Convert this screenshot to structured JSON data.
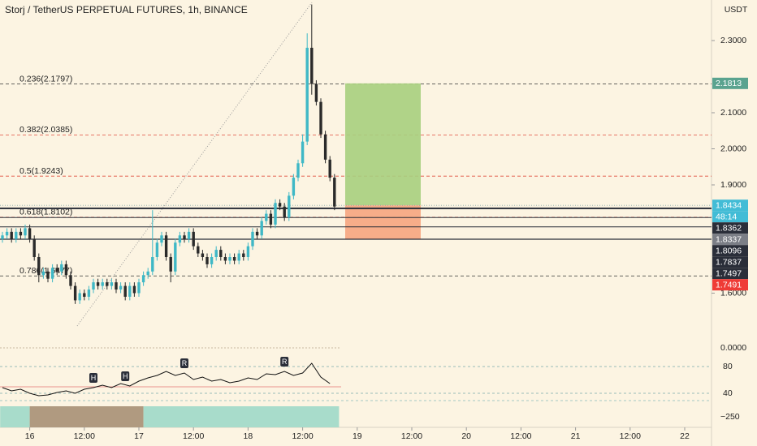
{
  "header": {
    "title": "Storj / TetherUS PERPETUAL FUTURES, 1h, BINANCE",
    "currency": "USDT"
  },
  "chart_data": {
    "type": "candlestick",
    "open": [
      1.75,
      1.76,
      1.77,
      1.75,
      1.77,
      1.76,
      1.78,
      1.75,
      1.7,
      1.65,
      1.66,
      1.64,
      1.67,
      1.66,
      1.68,
      1.65,
      1.62,
      1.58,
      1.6,
      1.59,
      1.61,
      1.63,
      1.62,
      1.63,
      1.62,
      1.63,
      1.61,
      1.62,
      1.59,
      1.62,
      1.6,
      1.63,
      1.65,
      1.66,
      1.7,
      1.74,
      1.76,
      1.7,
      1.66,
      1.74,
      1.76,
      1.75,
      1.77,
      1.73,
      1.71,
      1.7,
      1.68,
      1.7,
      1.72,
      1.7,
      1.69,
      1.7,
      1.69,
      1.71,
      1.7,
      1.73,
      1.77,
      1.76,
      1.8,
      1.82,
      1.79,
      1.85,
      1.84,
      1.81,
      1.87,
      1.92,
      1.96,
      2.02,
      2.28,
      2.18,
      2.13,
      2.04,
      1.97,
      1.92
    ],
    "high": [
      1.77,
      1.78,
      1.78,
      1.78,
      1.78,
      1.79,
      1.79,
      1.76,
      1.71,
      1.67,
      1.67,
      1.68,
      1.68,
      1.69,
      1.69,
      1.66,
      1.63,
      1.61,
      1.61,
      1.62,
      1.64,
      1.64,
      1.64,
      1.64,
      1.64,
      1.64,
      1.63,
      1.63,
      1.63,
      1.63,
      1.64,
      1.66,
      1.67,
      1.83,
      1.75,
      1.77,
      1.77,
      1.71,
      1.75,
      1.77,
      1.77,
      1.78,
      1.78,
      1.74,
      1.72,
      1.71,
      1.71,
      1.73,
      1.73,
      1.71,
      1.71,
      1.71,
      1.72,
      1.72,
      1.74,
      1.78,
      1.78,
      1.81,
      1.83,
      1.83,
      1.86,
      1.86,
      1.85,
      1.88,
      1.93,
      1.97,
      2.04,
      2.32,
      2.4,
      2.19,
      2.14,
      2.05,
      1.98,
      1.93
    ],
    "low": [
      1.74,
      1.75,
      1.74,
      1.74,
      1.75,
      1.75,
      1.74,
      1.69,
      1.63,
      1.64,
      1.63,
      1.63,
      1.65,
      1.65,
      1.64,
      1.61,
      1.57,
      1.57,
      1.58,
      1.58,
      1.6,
      1.61,
      1.61,
      1.61,
      1.61,
      1.6,
      1.6,
      1.58,
      1.58,
      1.59,
      1.59,
      1.62,
      1.64,
      1.65,
      1.69,
      1.73,
      1.69,
      1.63,
      1.65,
      1.73,
      1.74,
      1.74,
      1.72,
      1.7,
      1.69,
      1.67,
      1.67,
      1.69,
      1.69,
      1.68,
      1.68,
      1.68,
      1.68,
      1.69,
      1.69,
      1.72,
      1.75,
      1.75,
      1.79,
      1.78,
      1.78,
      1.83,
      1.8,
      1.8,
      1.86,
      1.91,
      1.95,
      2.01,
      2.15,
      2.12,
      2.03,
      1.96,
      1.91,
      1.83
    ],
    "close": [
      1.76,
      1.77,
      1.75,
      1.77,
      1.76,
      1.78,
      1.75,
      1.7,
      1.65,
      1.66,
      1.64,
      1.67,
      1.66,
      1.68,
      1.65,
      1.62,
      1.58,
      1.6,
      1.59,
      1.61,
      1.63,
      1.62,
      1.63,
      1.62,
      1.63,
      1.61,
      1.62,
      1.59,
      1.62,
      1.6,
      1.63,
      1.65,
      1.66,
      1.7,
      1.74,
      1.76,
      1.7,
      1.66,
      1.74,
      1.76,
      1.75,
      1.77,
      1.73,
      1.71,
      1.7,
      1.68,
      1.7,
      1.72,
      1.7,
      1.69,
      1.7,
      1.69,
      1.71,
      1.7,
      1.73,
      1.77,
      1.76,
      1.8,
      1.82,
      1.79,
      1.85,
      1.84,
      1.81,
      1.87,
      1.92,
      1.96,
      2.02,
      2.28,
      2.18,
      2.13,
      2.04,
      1.97,
      1.92,
      1.84
    ],
    "up_color": "#3fb8c6",
    "down_color": "#2a2a2a",
    "xlim": [
      0,
      156
    ],
    "xticks": [
      {
        "value": 6,
        "label": "16"
      },
      {
        "value": 18,
        "label": "12:00"
      },
      {
        "value": 30,
        "label": "17"
      },
      {
        "value": 42,
        "label": "12:00"
      },
      {
        "value": 54,
        "label": "18"
      },
      {
        "value": 66,
        "label": "12:00"
      },
      {
        "value": 78,
        "label": "19"
      },
      {
        "value": 90,
        "label": "12:00"
      },
      {
        "value": 102,
        "label": "20"
      },
      {
        "value": 114,
        "label": "12:00"
      },
      {
        "value": 126,
        "label": "21"
      },
      {
        "value": 138,
        "label": "12:00"
      },
      {
        "value": 150,
        "label": "22"
      }
    ],
    "ylim": [
      1.5,
      2.4
    ],
    "yticks": [
      {
        "value": 2.3,
        "label": "2.3000"
      },
      {
        "value": 2.1,
        "label": "2.1000"
      },
      {
        "value": 2.0,
        "label": "2.0000"
      },
      {
        "value": 1.9,
        "label": "1.9000"
      },
      {
        "value": 1.6,
        "label": "1.6000"
      }
    ],
    "fib_levels": [
      {
        "value": 2.1797,
        "label": "0.236(2.1797)",
        "color": "#333333"
      },
      {
        "value": 2.0385,
        "label": "0.382(2.0385)",
        "color": "#e04b3c"
      },
      {
        "value": 1.9243,
        "label": "0.5(1.9243)",
        "color": "#e04b3c"
      },
      {
        "value": 1.8102,
        "label": "0.618(1.8102)",
        "color": "#e04b3c"
      },
      {
        "value": 1.6477,
        "label": "0.786(1.6477)",
        "color": "#333333"
      }
    ],
    "price_badges": [
      {
        "value": 2.1813,
        "label": "2.1813",
        "color": "#5aa38f"
      },
      {
        "value": 1.8434,
        "label": "1.8434",
        "color": "#42bcd6"
      },
      {
        "value": 1.8362,
        "label": "1.8362",
        "color": "#2a2e39"
      },
      {
        "value": 1.8337,
        "label": "1.8337",
        "color": "#7b7e86"
      },
      {
        "value": 1.8096,
        "label": "1.8096",
        "color": "#2a2e39"
      },
      {
        "value": 1.7837,
        "label": "1.7837",
        "color": "#2a2e39"
      },
      {
        "value": 1.7497,
        "label": "1.7497",
        "color": "#2a2e39"
      },
      {
        "value": 1.7491,
        "label": "1.7491",
        "color": "#ef3b36"
      }
    ],
    "countdown": "48:14",
    "macd": {
      "yticks": [
        {
          "value": 0,
          "label": "0.0000"
        }
      ]
    },
    "oscillator": {
      "values": [
        48.5,
        43.6,
        46.1,
        40,
        36.4,
        37.6,
        41.2,
        43.6,
        40,
        46.1,
        48.5,
        52.1,
        48.5,
        54.5,
        50.9,
        58.2,
        63,
        66.7,
        72.7,
        66.7,
        70.3,
        60.6,
        64.2,
        58.2,
        60.6,
        55.8,
        58.2,
        63,
        60.6,
        69.1,
        67.9,
        72.7,
        66.7,
        70.3,
        84.8,
        64.2,
        54.5
      ],
      "ylim": [
        20,
        95
      ],
      "yticks": [
        80,
        40
      ],
      "markers": [
        {
          "x": 20,
          "label": "H"
        },
        {
          "x": 27,
          "label": "H"
        },
        {
          "x": 40,
          "label": "R"
        },
        {
          "x": 62,
          "label": "R"
        }
      ]
    },
    "band": {
      "tick": {
        "value": -250,
        "label": "−250"
      },
      "segments": [
        {
          "start": -0.5,
          "end": 6,
          "color": "#a8dccb"
        },
        {
          "start": 6,
          "end": 31,
          "color": "#b09a80"
        },
        {
          "start": 31,
          "end": 74,
          "color": "#a8dccb"
        }
      ]
    }
  }
}
